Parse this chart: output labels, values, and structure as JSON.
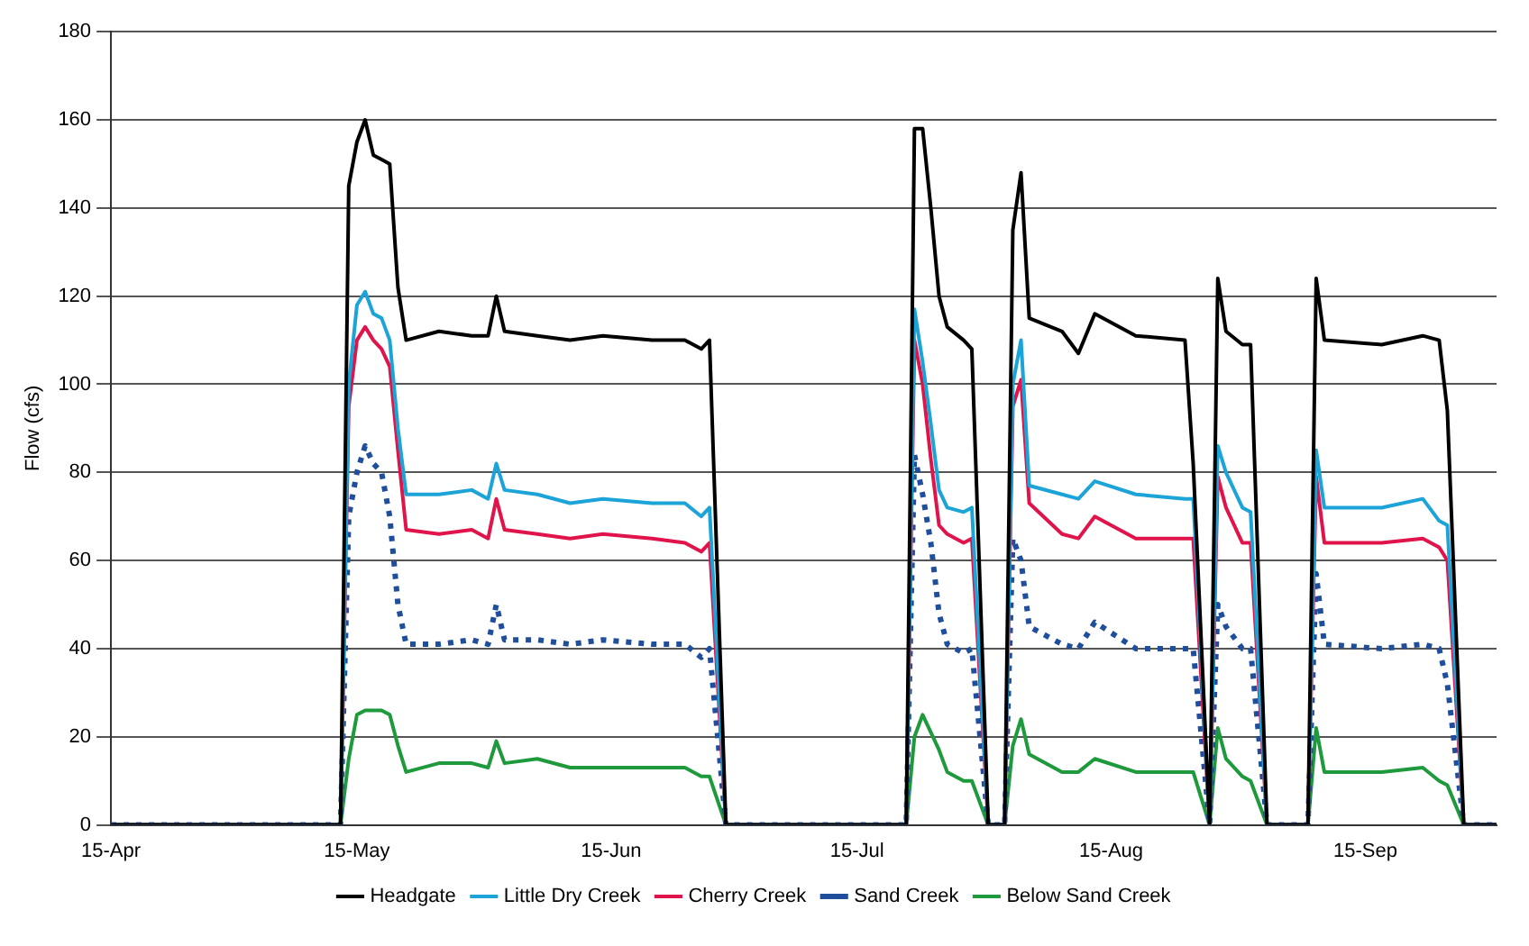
{
  "chart_data": {
    "type": "line",
    "ylabel": "Flow (cfs)",
    "ylim": [
      0,
      180
    ],
    "yticks": [
      0,
      20,
      40,
      60,
      80,
      100,
      120,
      140,
      160,
      180
    ],
    "xlim": [
      "--04-15",
      "--10-01"
    ],
    "xticks": [
      {
        "value": "--04-15",
        "label": "15-Apr"
      },
      {
        "value": "--05-15",
        "label": "15-May"
      },
      {
        "value": "--06-15",
        "label": "15-Jun"
      },
      {
        "value": "--07-15",
        "label": "15-Jul"
      },
      {
        "value": "--08-15",
        "label": "15-Aug"
      },
      {
        "value": "--09-15",
        "label": "15-Sep"
      }
    ],
    "grid": "y",
    "legend": "bottom",
    "marker": "none",
    "x": [
      "--04-15",
      "--05-13",
      "--05-14",
      "--05-15",
      "--05-16",
      "--05-17",
      "--05-18",
      "--05-19",
      "--05-20",
      "--05-21",
      "--05-25",
      "--05-29",
      "--05-31",
      "--06-01",
      "--06-02",
      "--06-06",
      "--06-10",
      "--06-14",
      "--06-20",
      "--06-24",
      "--06-26",
      "--06-27",
      "--06-29",
      "--07-21",
      "--07-22",
      "--07-23",
      "--07-24",
      "--07-25",
      "--07-26",
      "--07-28",
      "--07-29",
      "--07-31",
      "--08-02",
      "--08-03",
      "--08-04",
      "--08-05",
      "--08-09",
      "--08-11",
      "--08-13",
      "--08-18",
      "--08-24",
      "--08-25",
      "--08-27",
      "--08-28",
      "--08-29",
      "--08-31",
      "--09-01",
      "--09-03",
      "--09-08",
      "--09-09",
      "--09-10",
      "--09-17",
      "--09-22",
      "--09-24",
      "--09-25",
      "--09-27",
      "--10-01"
    ],
    "series": [
      {
        "name": "Headgate",
        "color": "#000000",
        "line_style": "solid",
        "values": [
          0,
          0,
          145,
          155,
          160,
          152,
          151,
          150,
          122,
          110,
          112,
          111,
          111,
          120,
          112,
          111,
          110,
          111,
          110,
          110,
          108,
          110,
          0,
          0,
          158,
          158,
          140,
          120,
          113,
          110,
          108,
          0,
          0,
          135,
          148,
          115,
          112,
          107,
          116,
          111,
          110,
          82,
          0,
          124,
          112,
          109,
          109,
          0,
          0,
          124,
          110,
          109,
          111,
          110,
          94,
          0,
          0
        ]
      },
      {
        "name": "Little Dry Creek",
        "color": "#1ca4d8",
        "line_style": "solid",
        "values": [
          0,
          0,
          100,
          118,
          121,
          116,
          115,
          110,
          90,
          75,
          75,
          76,
          74,
          82,
          76,
          75,
          73,
          74,
          73,
          73,
          70,
          72,
          0,
          0,
          117,
          105,
          91,
          76,
          72,
          71,
          72,
          0,
          0,
          100,
          110,
          77,
          75,
          74,
          78,
          75,
          74,
          74,
          0,
          86,
          80,
          72,
          71,
          0,
          0,
          85,
          72,
          72,
          74,
          69,
          68,
          0,
          0
        ]
      },
      {
        "name": "Cherry Creek",
        "color": "#e0144a",
        "line_style": "solid",
        "values": [
          0,
          0,
          95,
          110,
          113,
          110,
          108,
          104,
          85,
          67,
          66,
          67,
          65,
          74,
          67,
          66,
          65,
          66,
          65,
          64,
          62,
          64,
          0,
          0,
          110,
          100,
          83,
          68,
          66,
          64,
          65,
          0,
          0,
          95,
          101,
          73,
          66,
          65,
          70,
          65,
          65,
          65,
          0,
          79,
          72,
          64,
          64,
          0,
          0,
          79,
          64,
          64,
          65,
          63,
          60,
          0,
          0
        ]
      },
      {
        "name": "Sand Creek",
        "color": "#1f4e9c",
        "line_style": "dotted",
        "values": [
          0,
          0,
          70,
          80,
          86,
          82,
          80,
          70,
          50,
          41,
          41,
          42,
          41,
          50,
          42,
          42,
          41,
          42,
          41,
          41,
          38,
          40,
          0,
          0,
          84,
          75,
          64,
          48,
          41,
          39,
          40,
          0,
          0,
          65,
          60,
          45,
          41,
          40,
          46,
          40,
          40,
          40,
          0,
          50,
          45,
          40,
          40,
          0,
          0,
          57,
          41,
          40,
          41,
          40,
          32,
          0,
          0
        ]
      },
      {
        "name": "Below Sand Creek",
        "color": "#1e9a3c",
        "line_style": "solid",
        "values": [
          0,
          0,
          15,
          25,
          26,
          26,
          26,
          25,
          18,
          12,
          14,
          14,
          13,
          19,
          14,
          15,
          13,
          13,
          13,
          13,
          11,
          11,
          0,
          0,
          20,
          25,
          21,
          17,
          12,
          10,
          10,
          0,
          0,
          18,
          24,
          16,
          12,
          12,
          15,
          12,
          12,
          12,
          0,
          22,
          15,
          11,
          10,
          0,
          0,
          22,
          12,
          12,
          13,
          10,
          9,
          0,
          0
        ]
      }
    ]
  }
}
